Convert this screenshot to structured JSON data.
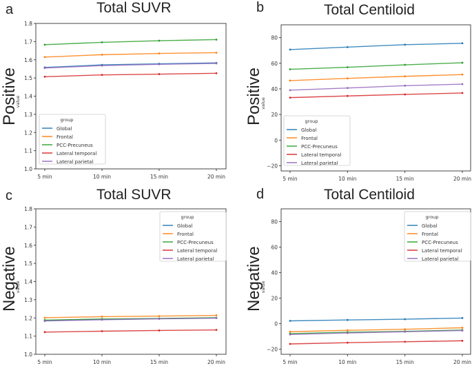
{
  "figure": {
    "row_labels": [
      "Positive",
      "Negative"
    ],
    "legend_title": "group",
    "colors": {
      "Global": "#1f77b4",
      "Frontal": "#ff7f0e",
      "PCC-Precuneus": "#2ca02c",
      "Lateral temporal": "#d62728",
      "Lateral parietal": "#9467bd"
    }
  },
  "chart_data": [
    {
      "panel": "a",
      "type": "line",
      "title": "Total SUVR",
      "row_label": "Positive",
      "xlabel": "",
      "ylabel": "value",
      "categories": [
        "5 min",
        "10 min",
        "15 min",
        "20 min"
      ],
      "ylim": [
        1.0,
        1.8
      ],
      "yticks": [
        1.0,
        1.1,
        1.2,
        1.3,
        1.4,
        1.5,
        1.6,
        1.7,
        1.8
      ],
      "ytick_labels": [
        "1.0",
        "1.1",
        "1.2",
        "1.3",
        "1.4",
        "1.5",
        "1.6",
        "1.7",
        "1.8"
      ],
      "legend_title": "group",
      "legend_position": "lower-left",
      "grid": false,
      "series": [
        {
          "name": "Global",
          "values": [
            1.558,
            1.572,
            1.578,
            1.583
          ]
        },
        {
          "name": "Frontal",
          "values": [
            1.615,
            1.628,
            1.635,
            1.639
          ]
        },
        {
          "name": "PCC-Precuneus",
          "values": [
            1.683,
            1.696,
            1.705,
            1.711
          ]
        },
        {
          "name": "Lateral temporal",
          "values": [
            1.507,
            1.517,
            1.521,
            1.526
          ]
        },
        {
          "name": "Lateral parietal",
          "values": [
            1.555,
            1.568,
            1.575,
            1.58
          ]
        }
      ]
    },
    {
      "panel": "b",
      "type": "line",
      "title": "Total Centiloid",
      "row_label": "Positive",
      "xlabel": "",
      "ylabel": "value",
      "categories": [
        "5 min",
        "10 min",
        "15 min",
        "20 min"
      ],
      "ylim": [
        -24,
        90
      ],
      "yticks": [
        -20,
        0,
        20,
        40,
        60,
        80
      ],
      "ytick_labels": [
        "−20",
        "0",
        "20",
        "40",
        "60",
        "80"
      ],
      "legend_title": "group",
      "legend_position": "lower-left",
      "grid": false,
      "series": [
        {
          "name": "Global",
          "values": [
            70.7,
            72.6,
            74.5,
            75.6
          ]
        },
        {
          "name": "Frontal",
          "values": [
            46.5,
            48.2,
            49.8,
            51.2
          ]
        },
        {
          "name": "PCC-Precuneus",
          "values": [
            55.3,
            56.9,
            58.8,
            60.4
          ]
        },
        {
          "name": "Lateral temporal",
          "values": [
            33.2,
            34.5,
            35.7,
            36.8
          ]
        },
        {
          "name": "Lateral parietal",
          "values": [
            39.0,
            40.7,
            42.5,
            43.7
          ]
        }
      ]
    },
    {
      "panel": "c",
      "type": "line",
      "title": "Total SUVR",
      "row_label": "Negative",
      "xlabel": "",
      "ylabel": "value",
      "categories": [
        "5 min",
        "10 min",
        "15 min",
        "20 min"
      ],
      "ylim": [
        1.0,
        1.8
      ],
      "yticks": [
        1.0,
        1.1,
        1.2,
        1.3,
        1.4,
        1.5,
        1.6,
        1.7,
        1.8
      ],
      "ytick_labels": [
        "1.0",
        "1.1",
        "1.2",
        "1.3",
        "1.4",
        "1.5",
        "1.6",
        "1.7",
        "1.8"
      ],
      "legend_title": "group",
      "legend_position": "upper-right",
      "grid": false,
      "series": [
        {
          "name": "Global",
          "values": [
            1.186,
            1.192,
            1.196,
            1.2
          ]
        },
        {
          "name": "Frontal",
          "values": [
            1.201,
            1.207,
            1.21,
            1.214
          ]
        },
        {
          "name": "PCC-Precuneus",
          "values": [
            1.188,
            1.194,
            1.197,
            1.201
          ]
        },
        {
          "name": "Lateral temporal",
          "values": [
            1.122,
            1.127,
            1.131,
            1.134
          ]
        },
        {
          "name": "Lateral parietal",
          "values": [
            1.183,
            1.19,
            1.195,
            1.199
          ]
        }
      ]
    },
    {
      "panel": "d",
      "type": "line",
      "title": "Total Centiloid",
      "row_label": "Negative",
      "xlabel": "",
      "ylabel": "value",
      "categories": [
        "5 min",
        "10 min",
        "15 min",
        "20 min"
      ],
      "ylim": [
        -24,
        90
      ],
      "yticks": [
        -20,
        0,
        20,
        40,
        60,
        80
      ],
      "ytick_labels": [
        "−20",
        "0",
        "20",
        "40",
        "60",
        "80"
      ],
      "legend_title": "group",
      "legend_position": "upper-right",
      "grid": false,
      "series": [
        {
          "name": "Global",
          "values": [
            2.2,
            2.9,
            3.5,
            4.4
          ]
        },
        {
          "name": "Frontal",
          "values": [
            -6.3,
            -5.2,
            -4.4,
            -3.2
          ]
        },
        {
          "name": "PCC-Precuneus",
          "values": [
            -7.8,
            -6.7,
            -6.0,
            -5.0
          ]
        },
        {
          "name": "Lateral temporal",
          "values": [
            -15.9,
            -14.9,
            -14.2,
            -13.4
          ]
        },
        {
          "name": "Lateral parietal",
          "values": [
            -8.5,
            -7.3,
            -6.3,
            -5.4
          ]
        }
      ]
    }
  ]
}
